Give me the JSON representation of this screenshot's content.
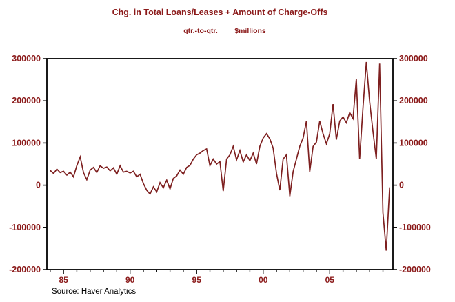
{
  "header": {
    "title": "Chg. in Total Loans/Leases + Amount of Charge-Offs",
    "subtitle_left": "qtr.-to-qtr.",
    "subtitle_right": "$millions"
  },
  "footer": {
    "source": "Source: Haver Analytics"
  },
  "colors": {
    "line": "#7E2020",
    "labels": "#8B1A1A",
    "frame": "#000000",
    "background": "#ffffff"
  },
  "chart_data": {
    "type": "line",
    "title": "Chg. in Total Loans/Leases + Amount of Charge-Offs",
    "subtitle": "qtr.-to-qtr.  $millions",
    "xlabel": "",
    "ylabel": "$millions",
    "grid": false,
    "legend": null,
    "xlim": [
      1983.75,
      2009.75
    ],
    "ylim": [
      -200000,
      300000
    ],
    "y_ticks": [
      -200000,
      -100000,
      0,
      100000,
      200000,
      300000
    ],
    "y_tick_labels": [
      "-200000",
      "-100000",
      "0",
      "100000",
      "200000",
      "300000"
    ],
    "x_tick_years": [
      1985,
      1990,
      1995,
      2000,
      2005
    ],
    "x_tick_labels": [
      "85",
      "90",
      "95",
      "00",
      "05"
    ],
    "x_start": 1984.0,
    "x_step": 0.25,
    "values": [
      35000,
      28000,
      38000,
      30000,
      33000,
      24000,
      31000,
      20000,
      46000,
      67000,
      30000,
      13000,
      36000,
      42000,
      30000,
      46000,
      40000,
      43000,
      34000,
      41000,
      26000,
      46000,
      31000,
      33000,
      29000,
      33000,
      20000,
      26000,
      4000,
      -12000,
      -21000,
      -4000,
      -16000,
      6000,
      -6000,
      12000,
      -9000,
      16000,
      22000,
      36000,
      26000,
      42000,
      47000,
      62000,
      72000,
      76000,
      82000,
      86000,
      46000,
      62000,
      50000,
      56000,
      -14000,
      62000,
      72000,
      92000,
      60000,
      82000,
      55000,
      72000,
      58000,
      76000,
      50000,
      92000,
      112000,
      122000,
      110000,
      88000,
      28000,
      -12000,
      62000,
      72000,
      -26000,
      32000,
      62000,
      92000,
      112000,
      152000,
      32000,
      92000,
      102000,
      152000,
      122000,
      98000,
      122000,
      192000,
      108000,
      152000,
      162000,
      148000,
      172000,
      158000,
      252000,
      62000,
      185000,
      292000,
      198000,
      128000,
      62000,
      288000,
      -65000,
      -155000,
      -5000
    ]
  }
}
